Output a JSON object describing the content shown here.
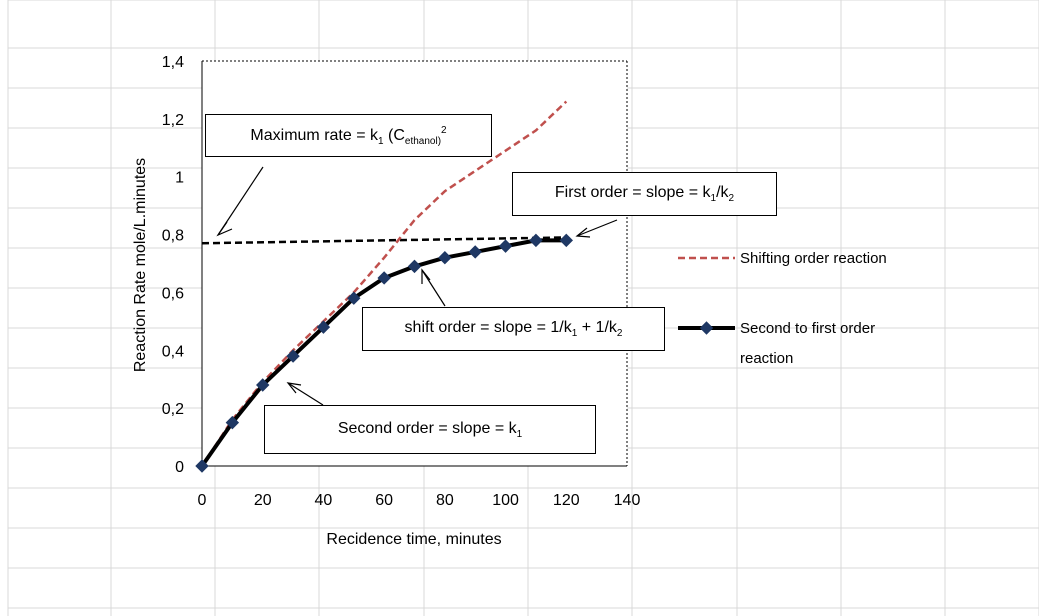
{
  "chart_data": {
    "type": "line",
    "title": "",
    "xlabel": "Recidence time, minutes",
    "ylabel": "Reaction Rate mole/L.minutes",
    "xlim": [
      0,
      140
    ],
    "ylim": [
      0,
      1.4
    ],
    "x_ticks": [
      "0",
      "20",
      "40",
      "60",
      "80",
      "100",
      "120",
      "140"
    ],
    "y_ticks": [
      "0",
      "0,2",
      "0,4",
      "0,6",
      "0,8",
      "1",
      "1,2",
      "1,4"
    ],
    "grid": false,
    "legend_position": "right",
    "series": [
      {
        "name": "Shifting order reaction",
        "color": "#c0504d",
        "style": "dashed",
        "x": [
          0,
          10,
          20,
          30,
          40,
          50,
          60,
          70,
          80,
          90,
          100,
          110,
          120
        ],
        "y": [
          0,
          0.16,
          0.29,
          0.4,
          0.5,
          0.6,
          0.72,
          0.85,
          0.95,
          1.02,
          1.09,
          1.16,
          1.26
        ]
      },
      {
        "name": "Second to first order reaction",
        "color": "#000000",
        "style": "solid-markers",
        "x": [
          0,
          10,
          20,
          30,
          40,
          50,
          60,
          70,
          80,
          90,
          100,
          110,
          120
        ],
        "y": [
          0,
          0.15,
          0.28,
          0.38,
          0.48,
          0.58,
          0.65,
          0.69,
          0.72,
          0.74,
          0.76,
          0.78,
          0.78
        ]
      }
    ],
    "reference_line": {
      "style": "dashed",
      "color": "#000000",
      "x": [
        0,
        120
      ],
      "y": [
        0.77,
        0.79
      ]
    },
    "legend": {
      "shifting_label": "Shifting order reaction",
      "second_label_line1": "Second to first order",
      "second_label_line2": "reaction"
    },
    "annotations": {
      "max_rate": {
        "prefix": "Maximum rate = k",
        "sub1": "1",
        "mid": " (C",
        "sub2": "ethanol)",
        "sup": "2"
      },
      "first_order": {
        "prefix": "First  order = slope = k",
        "sub1": "1",
        "mid": "/k",
        "sub2": "2"
      },
      "shift_order": {
        "prefix": "shift order = slope = 1/k",
        "sub1": "1",
        "mid": " + 1/k",
        "sub2": "2"
      },
      "second_order": {
        "prefix": "Second order = slope =  k",
        "sub1": "1"
      }
    }
  }
}
